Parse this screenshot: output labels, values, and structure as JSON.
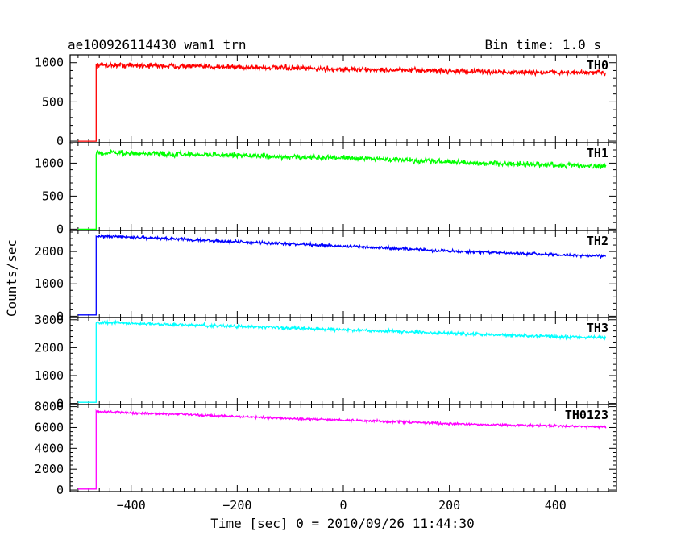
{
  "chart_data": {
    "type": "line",
    "title": "ae100926114430_wam1_trn",
    "bin_time_label": "Bin time: 1.0 s",
    "xlabel": "Time [sec] 0 = 2010/09/26 11:44:30",
    "ylabel": "Counts/sec",
    "xlim": [
      -515,
      515
    ],
    "x_ticks": [
      -400,
      -200,
      0,
      200,
      400
    ],
    "x_tick_labels": [
      "−400",
      "−200",
      "0",
      "200",
      "400"
    ],
    "grid": false,
    "panels": [
      {
        "name": "TH0",
        "color": "#ff0000",
        "ylim": [
          -20,
          1100
        ],
        "y_ticks": [
          0,
          500,
          1000
        ],
        "y_tick_labels": [
          "0",
          "500",
          "1000"
        ],
        "start_x": -466,
        "end_x": 495,
        "pre_level": 0,
        "x": [
          -466,
          -400,
          -300,
          -200,
          -100,
          0,
          100,
          200,
          300,
          400,
          495
        ],
        "y": [
          970,
          965,
          955,
          945,
          930,
          915,
          905,
          895,
          880,
          875,
          870
        ],
        "noise": 32
      },
      {
        "name": "TH1",
        "color": "#00ff00",
        "ylim": [
          -20,
          1310
        ],
        "y_ticks": [
          0,
          500,
          1000
        ],
        "y_tick_labels": [
          "0",
          "500",
          "1000"
        ],
        "start_x": -466,
        "end_x": 495,
        "pre_level": 0,
        "x": [
          -466,
          -400,
          -300,
          -200,
          -100,
          0,
          100,
          200,
          300,
          400,
          495
        ],
        "y": [
          1160,
          1150,
          1135,
          1120,
          1090,
          1080,
          1050,
          1020,
          990,
          975,
          950
        ],
        "noise": 38
      },
      {
        "name": "TH2",
        "color": "#0000ff",
        "ylim": [
          -40,
          2650
        ],
        "y_ticks": [
          0,
          1000,
          2000
        ],
        "y_tick_labels": [
          "0",
          "1000",
          "2000"
        ],
        "start_x": -466,
        "end_x": 495,
        "pre_level": 40,
        "x": [
          -466,
          -400,
          -300,
          -200,
          -100,
          0,
          100,
          200,
          300,
          400,
          495
        ],
        "y": [
          2480,
          2440,
          2380,
          2300,
          2230,
          2160,
          2100,
          2010,
          1960,
          1900,
          1850
        ],
        "noise": 45
      },
      {
        "name": "TH3",
        "color": "#00ffff",
        "ylim": [
          -40,
          3080
        ],
        "y_ticks": [
          0,
          1000,
          2000,
          3000
        ],
        "y_tick_labels": [
          "0",
          "1000",
          "2000",
          "3000"
        ],
        "start_x": -466,
        "end_x": 495,
        "pre_level": 40,
        "x": [
          -466,
          -400,
          -300,
          -200,
          -100,
          0,
          100,
          200,
          300,
          400,
          495
        ],
        "y": [
          2900,
          2870,
          2820,
          2760,
          2700,
          2640,
          2580,
          2510,
          2450,
          2400,
          2360
        ],
        "noise": 55
      },
      {
        "name": "TH0123",
        "color": "#ff00ff",
        "ylim": [
          -150,
          8200
        ],
        "y_ticks": [
          0,
          2000,
          4000,
          6000,
          8000
        ],
        "y_tick_labels": [
          "0",
          "2000",
          "4000",
          "6000",
          "8000"
        ],
        "start_x": -466,
        "end_x": 495,
        "pre_level": 100,
        "x": [
          -466,
          -400,
          -300,
          -200,
          -100,
          0,
          100,
          200,
          300,
          400,
          495
        ],
        "y": [
          7550,
          7400,
          7250,
          7050,
          6850,
          6700,
          6550,
          6350,
          6250,
          6150,
          6050
        ],
        "noise": 110
      }
    ]
  }
}
